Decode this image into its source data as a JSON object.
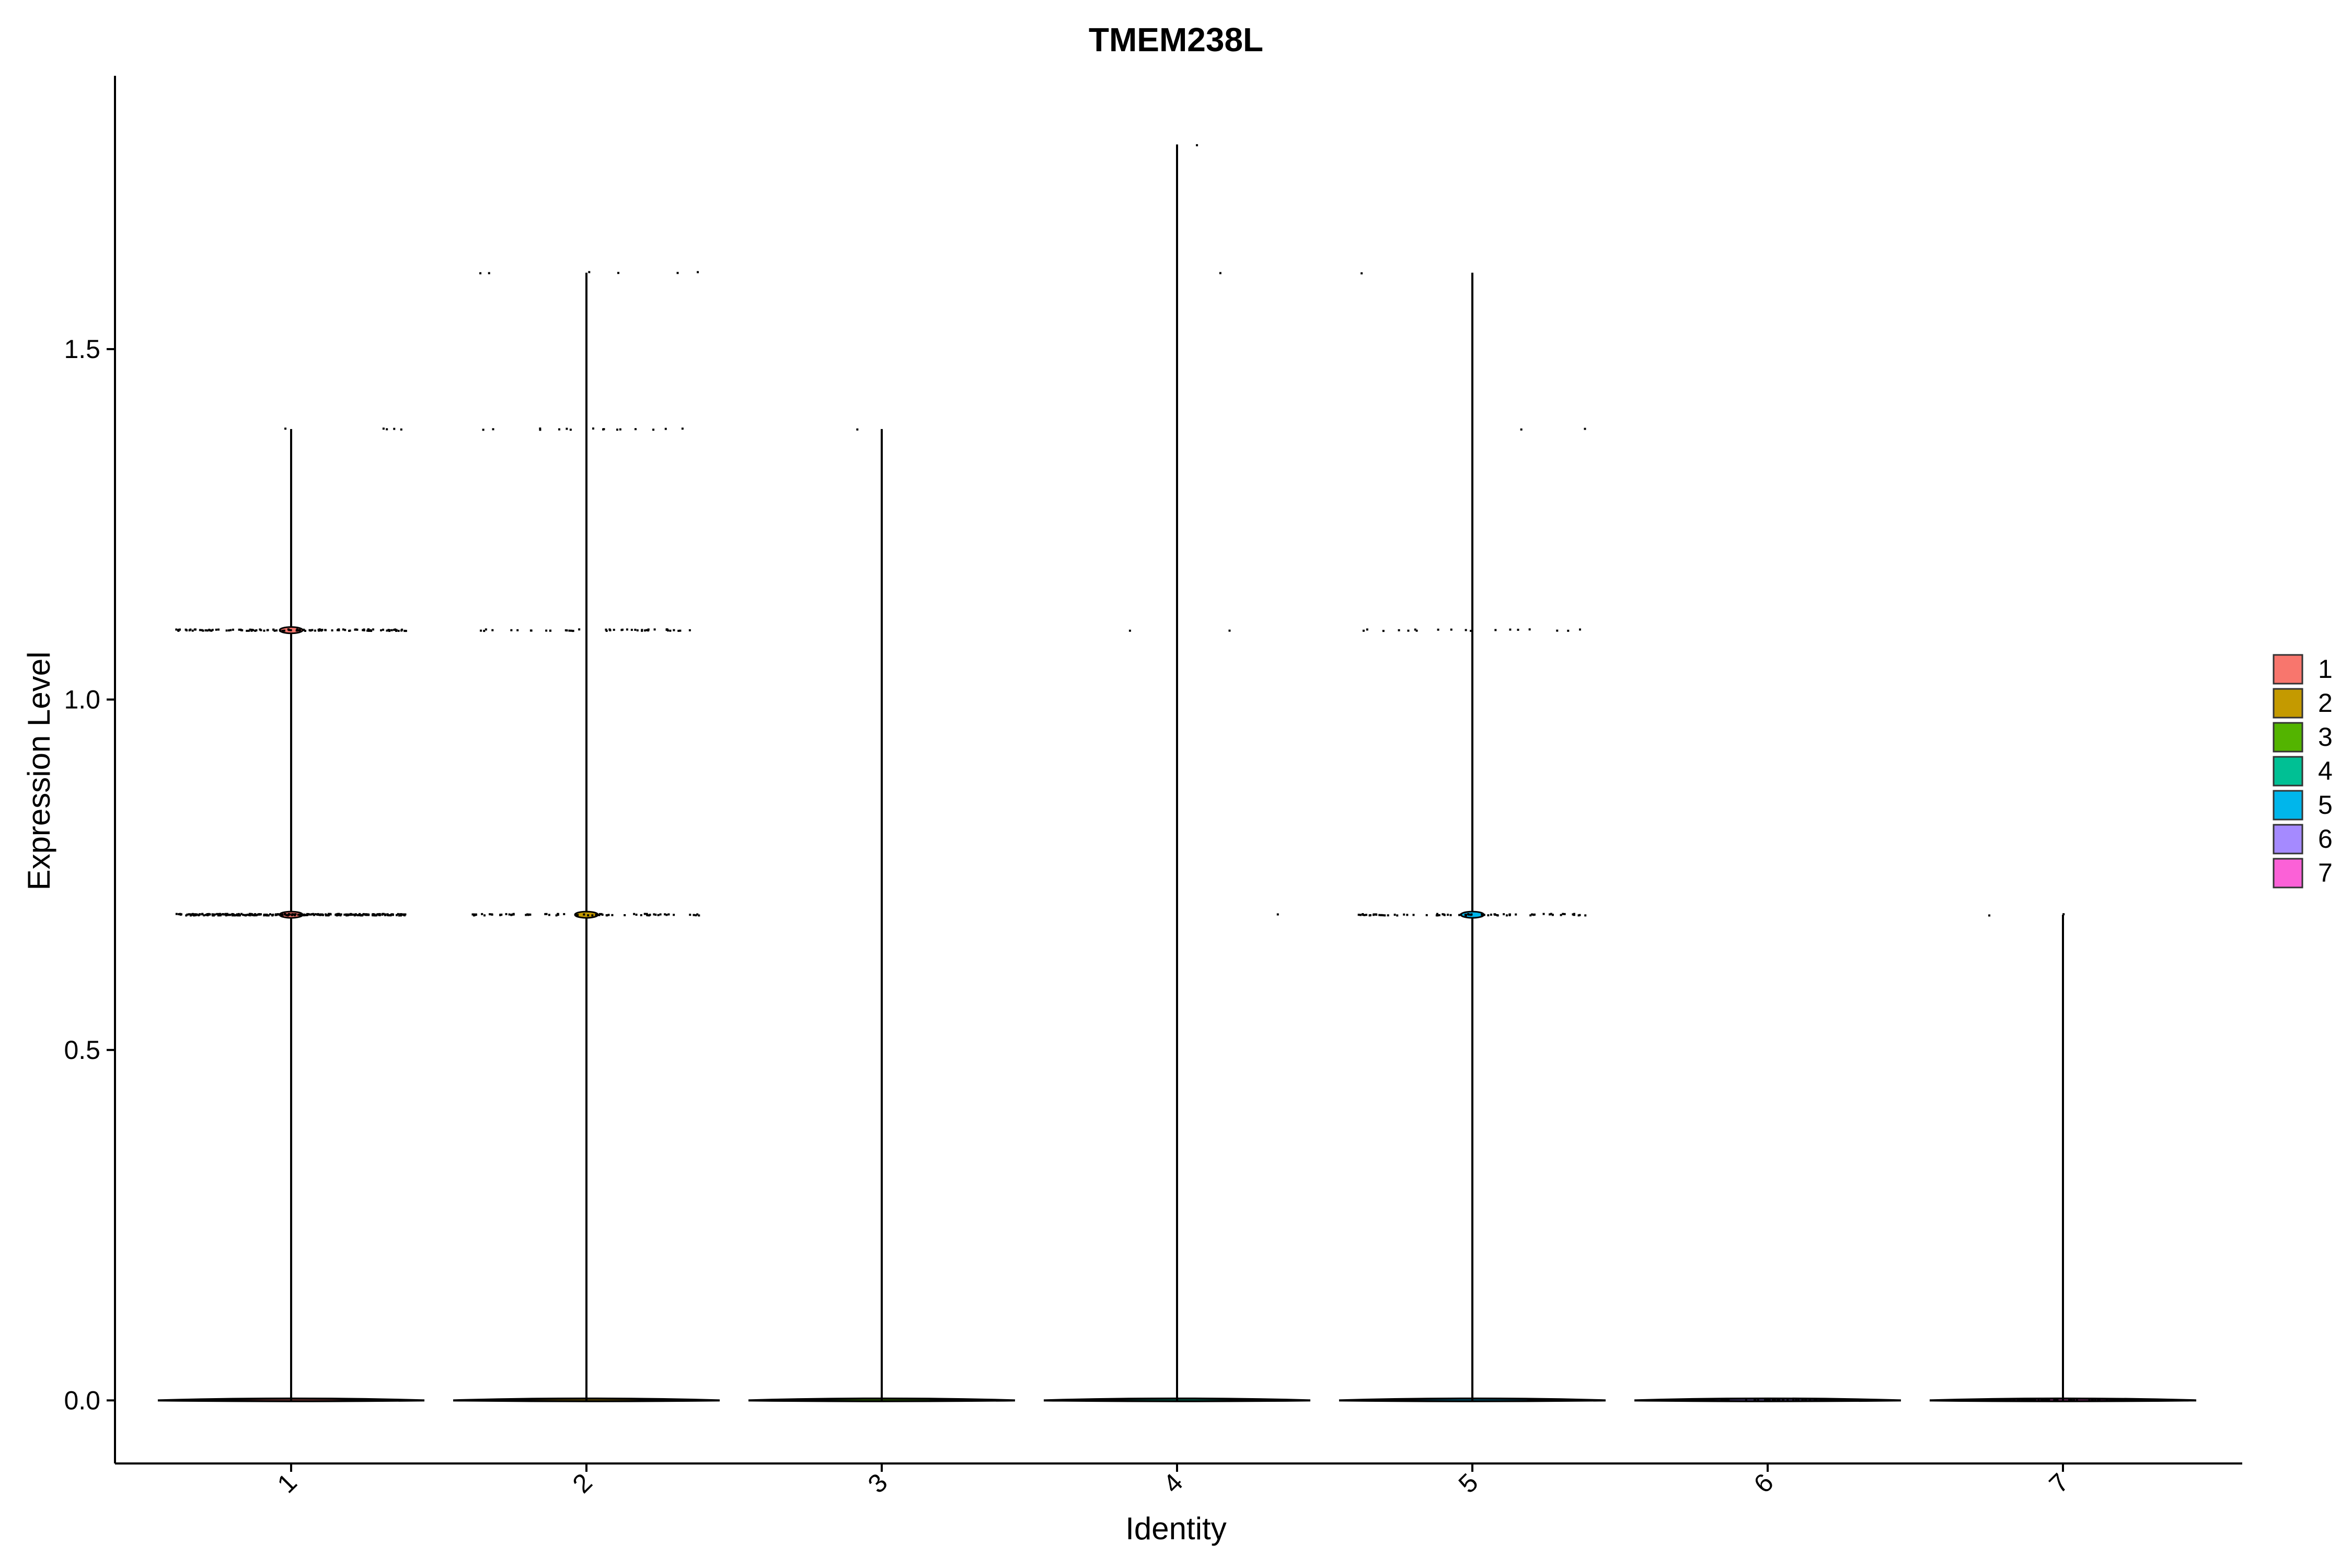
{
  "chart_data": {
    "type": "violin",
    "title": "TMEM238L",
    "xlabel": "Identity",
    "ylabel": "Expression Level",
    "categories": [
      "1",
      "2",
      "3",
      "4",
      "5",
      "6",
      "7"
    ],
    "ylim": [
      -0.09,
      1.89
    ],
    "yticks": [
      0.0,
      0.5,
      1.0,
      1.5
    ],
    "ytick_labels": [
      "0.0",
      "0.5",
      "1.0",
      "1.5"
    ],
    "series": [
      {
        "category": "1",
        "color": "#F8766D",
        "max": 1.386,
        "levels": [
          0.0,
          0.693,
          1.099,
          1.386
        ],
        "point_counts": [
          0,
          300,
          120,
          5
        ]
      },
      {
        "category": "2",
        "color": "#C49A00",
        "max": 1.609,
        "levels": [
          0.0,
          0.693,
          1.099,
          1.386,
          1.609
        ],
        "point_counts": [
          0,
          70,
          45,
          16,
          6
        ]
      },
      {
        "category": "3",
        "color": "#53B400",
        "max": 1.386,
        "levels": [
          0.0,
          1.386
        ],
        "point_counts": [
          0,
          1
        ]
      },
      {
        "category": "4",
        "color": "#00C094",
        "max": 1.792,
        "levels": [
          0.0,
          0.693,
          1.099,
          1.609,
          1.792
        ],
        "point_counts": [
          0,
          1,
          2,
          1,
          1
        ]
      },
      {
        "category": "5",
        "color": "#00B6EB",
        "max": 1.609,
        "levels": [
          0.0,
          0.693,
          1.099,
          1.386,
          1.609
        ],
        "point_counts": [
          0,
          80,
          18,
          2,
          1
        ]
      },
      {
        "category": "6",
        "color": "#A58AFF",
        "max": 0.0,
        "levels": [
          0.0
        ],
        "point_counts": [
          0
        ]
      },
      {
        "category": "7",
        "color": "#FB61D7",
        "max": 0.693,
        "levels": [
          0.0,
          0.693
        ],
        "point_counts": [
          0,
          2
        ]
      }
    ],
    "legend": {
      "position": "right",
      "entries": [
        {
          "label": "1",
          "color": "#F8766D"
        },
        {
          "label": "2",
          "color": "#C49A00"
        },
        {
          "label": "3",
          "color": "#53B400"
        },
        {
          "label": "4",
          "color": "#00C094"
        },
        {
          "label": "5",
          "color": "#00B6EB"
        },
        {
          "label": "6",
          "color": "#A58AFF"
        },
        {
          "label": "7",
          "color": "#FB61D7"
        }
      ]
    },
    "grid": false
  }
}
